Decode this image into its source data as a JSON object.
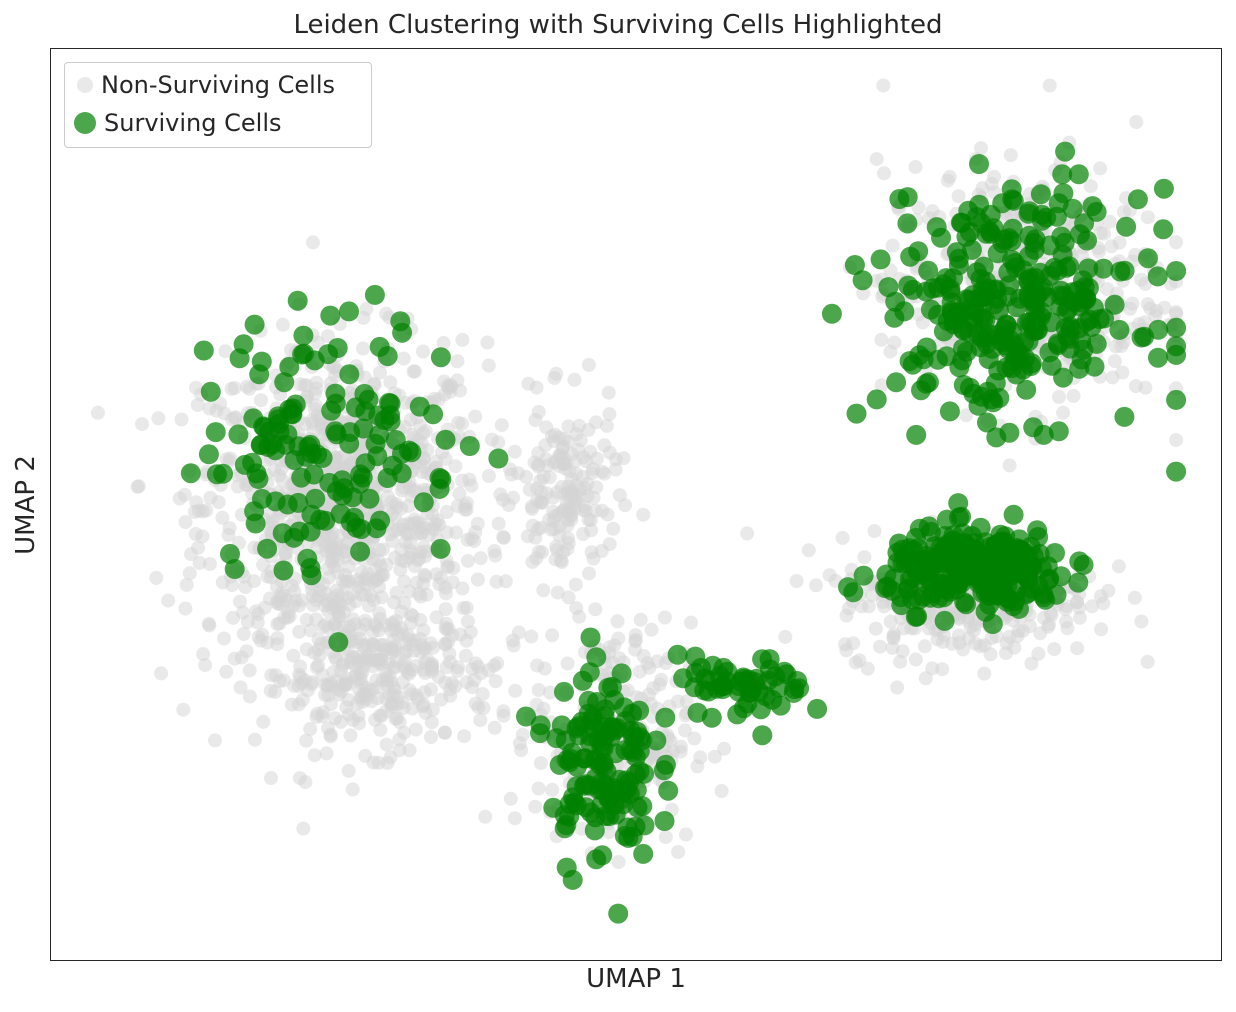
{
  "chart_data": {
    "type": "scatter",
    "title": "Leiden Clustering with Surviving Cells Highlighted",
    "xlabel": "UMAP 1",
    "ylabel": "UMAP 2",
    "xlim": [
      0,
      100
    ],
    "ylim": [
      0,
      100
    ],
    "grid": false,
    "xticks": false,
    "yticks": false,
    "legend_position": "top-left",
    "series": [
      {
        "name": "Non-Surviving Cells",
        "color": "#d3d3d3",
        "opacity": 0.5,
        "marker_size": "small",
        "n_points": 2400,
        "clusters": [
          {
            "center": [
              25,
              50
            ],
            "spread": [
              11,
              16
            ],
            "share": 0.4
          },
          {
            "center": [
              28,
              31
            ],
            "spread": [
              9,
              7
            ],
            "share": 0.12
          },
          {
            "center": [
              44,
              51
            ],
            "spread": [
              4,
              9
            ],
            "share": 0.07
          },
          {
            "center": [
              48,
              25
            ],
            "spread": [
              6,
              11
            ],
            "share": 0.1
          },
          {
            "center": [
              78,
              40
            ],
            "spread": [
              10,
              6
            ],
            "share": 0.14
          },
          {
            "center": [
              83,
              74
            ],
            "spread": [
              11,
              12
            ],
            "share": 0.17
          }
        ]
      },
      {
        "name": "Surviving Cells",
        "color": "#008000",
        "opacity": 0.7,
        "marker_size": "large",
        "n_points": 900,
        "clusters": [
          {
            "center": [
              24,
              57
            ],
            "spread": [
              10,
              13
            ],
            "share": 0.16
          },
          {
            "center": [
              47,
              22
            ],
            "spread": [
              4,
              10
            ],
            "share": 0.15
          },
          {
            "center": [
              59,
              30
            ],
            "spread": [
              5,
              3
            ],
            "share": 0.06
          },
          {
            "center": [
              79,
              43
            ],
            "spread": [
              7,
              4
            ],
            "share": 0.3
          },
          {
            "center": [
              82,
              72
            ],
            "spread": [
              10,
              11
            ],
            "share": 0.33
          }
        ]
      }
    ]
  }
}
